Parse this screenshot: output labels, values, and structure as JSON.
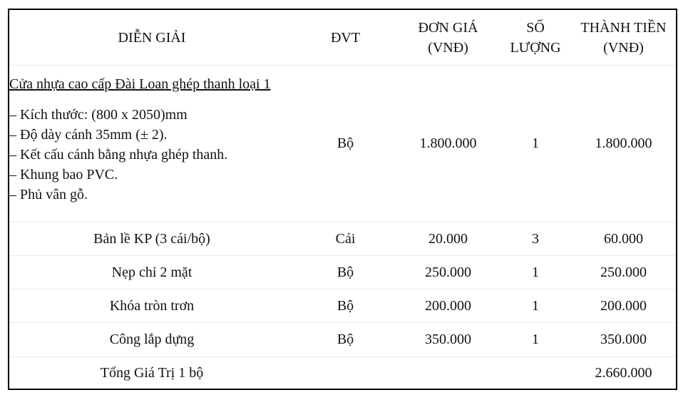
{
  "headers": {
    "description": "DIỄN GIẢI",
    "unit": "ĐVT",
    "unit_price_line1": "ĐƠN GIÁ",
    "unit_price_line2": "(VNĐ)",
    "quantity_line1": "SỐ",
    "quantity_line2": "LƯỢNG",
    "total_line1": "THÀNH TIỀN",
    "total_line2": "(VNĐ)"
  },
  "main_item": {
    "title": "Cửa nhựa cao cấp Đài Loan ghép thanh loại 1",
    "specs": [
      "– Kích thước: (800 x 2050)mm",
      "– Độ dày cánh 35mm (± 2).",
      "– Kết cấu cánh bằng nhựa ghép thanh.",
      "– Khung bao PVC.",
      "– Phủ vân gỗ."
    ],
    "unit": "Bộ",
    "unit_price": "1.800.000",
    "quantity": "1",
    "total": "1.800.000"
  },
  "items": [
    {
      "description": "Bản lề KP (3 cái/bộ)",
      "unit": "Cái",
      "unit_price": "20.000",
      "quantity": "3",
      "total": "60.000"
    },
    {
      "description": "Nẹp chỉ 2 mặt",
      "unit": "Bộ",
      "unit_price": "250.000",
      "quantity": "1",
      "total": "250.000"
    },
    {
      "description": "Khóa tròn trơn",
      "unit": "Bộ",
      "unit_price": "200.000",
      "quantity": "1",
      "total": "200.000"
    },
    {
      "description": "Công lắp dựng",
      "unit": "Bộ",
      "unit_price": "350.000",
      "quantity": "1",
      "total": "350.000"
    }
  ],
  "summary": {
    "label": "Tổng Giá Trị 1 bộ",
    "total": "2.660.000"
  }
}
